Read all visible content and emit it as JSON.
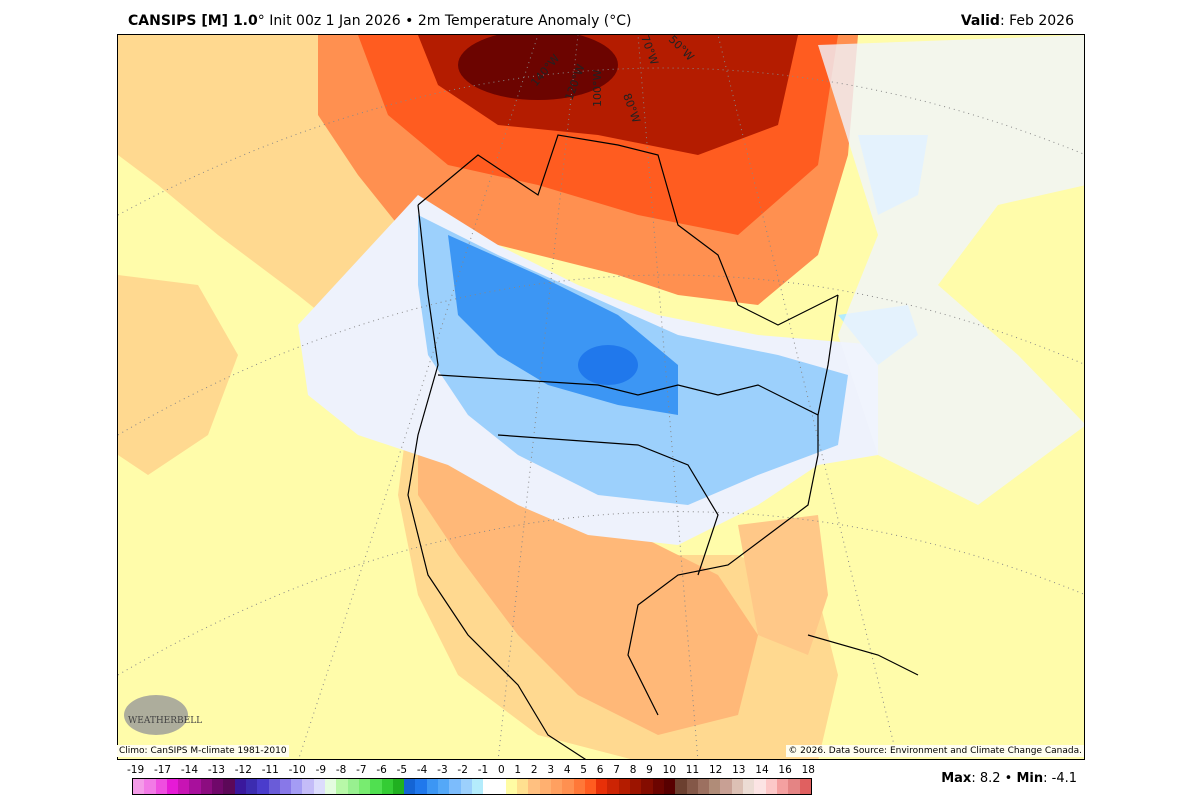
{
  "header": {
    "model": "CANSIPS [M] 1.0",
    "deg": "°",
    "init": " Init 00z 1 Jan 2026 • 2m Temperature Anomaly (°C)",
    "valid_label": "Valid",
    "valid_value": ": Feb 2026"
  },
  "map": {
    "longitude_labels": [
      "140°W",
      "120°W",
      "100°W",
      "80°W",
      "70°W",
      "50°W"
    ],
    "logo": "WeatherBELL Analytics LLC"
  },
  "footer": {
    "climo": "Climo: CanSIPS M-climate 1981-2010",
    "copyright": "© 2026. Data Source: Environment and Climate Change Canada.",
    "max_label": "Max",
    "max_value": ": 8.2 • ",
    "min_label": "Min",
    "min_value": ": -4.1"
  },
  "colorbar": {
    "labels": [
      "-19",
      "-17",
      "-14",
      "-13",
      "-12",
      "-11",
      "-10",
      "-9",
      "-8",
      "-7",
      "-6",
      "-5",
      "-4",
      "-3",
      "-2",
      "-1",
      "0",
      "1",
      "2",
      "3",
      "4",
      "5",
      "6",
      "7",
      "8",
      "9",
      "10",
      "11",
      "12",
      "13",
      "14",
      "16",
      "18"
    ],
    "colors": [
      "#f49ce8",
      "#f27ae6",
      "#ef4ee0",
      "#e61ad6",
      "#c814b4",
      "#a8109c",
      "#8c0c80",
      "#70086a",
      "#5c0858",
      "#3a189c",
      "#3c2cb0",
      "#4a3ccc",
      "#6a5cd8",
      "#8878e8",
      "#a49cf4",
      "#c4bcf8",
      "#dcdcfc",
      "#e4fce0",
      "#b8f8a8",
      "#98f090",
      "#78ec70",
      "#50e050",
      "#34cc34",
      "#20b020",
      "#1464d4",
      "#2078ec",
      "#3c96f4",
      "#54a8f8",
      "#7cbcfc",
      "#9cd0fc",
      "#b4ecfc",
      "#ffffff",
      "#ffffff",
      "#fffca4",
      "#ffe090",
      "#ffc080",
      "#ffb070",
      "#ffa060",
      "#ff9050",
      "#ff7838",
      "#ff5c20",
      "#e83008",
      "#cc2404",
      "#b41c00",
      "#9c1400",
      "#840c00",
      "#6c0400",
      "#580000",
      "#6c4030",
      "#845848",
      "#9c7060",
      "#b08c78",
      "#c8a094",
      "#dcc0b4",
      "#ecdcd4",
      "#fce4e4",
      "#fcc8c8",
      "#f4a0a0",
      "#e48484",
      "#e06060"
    ]
  }
}
